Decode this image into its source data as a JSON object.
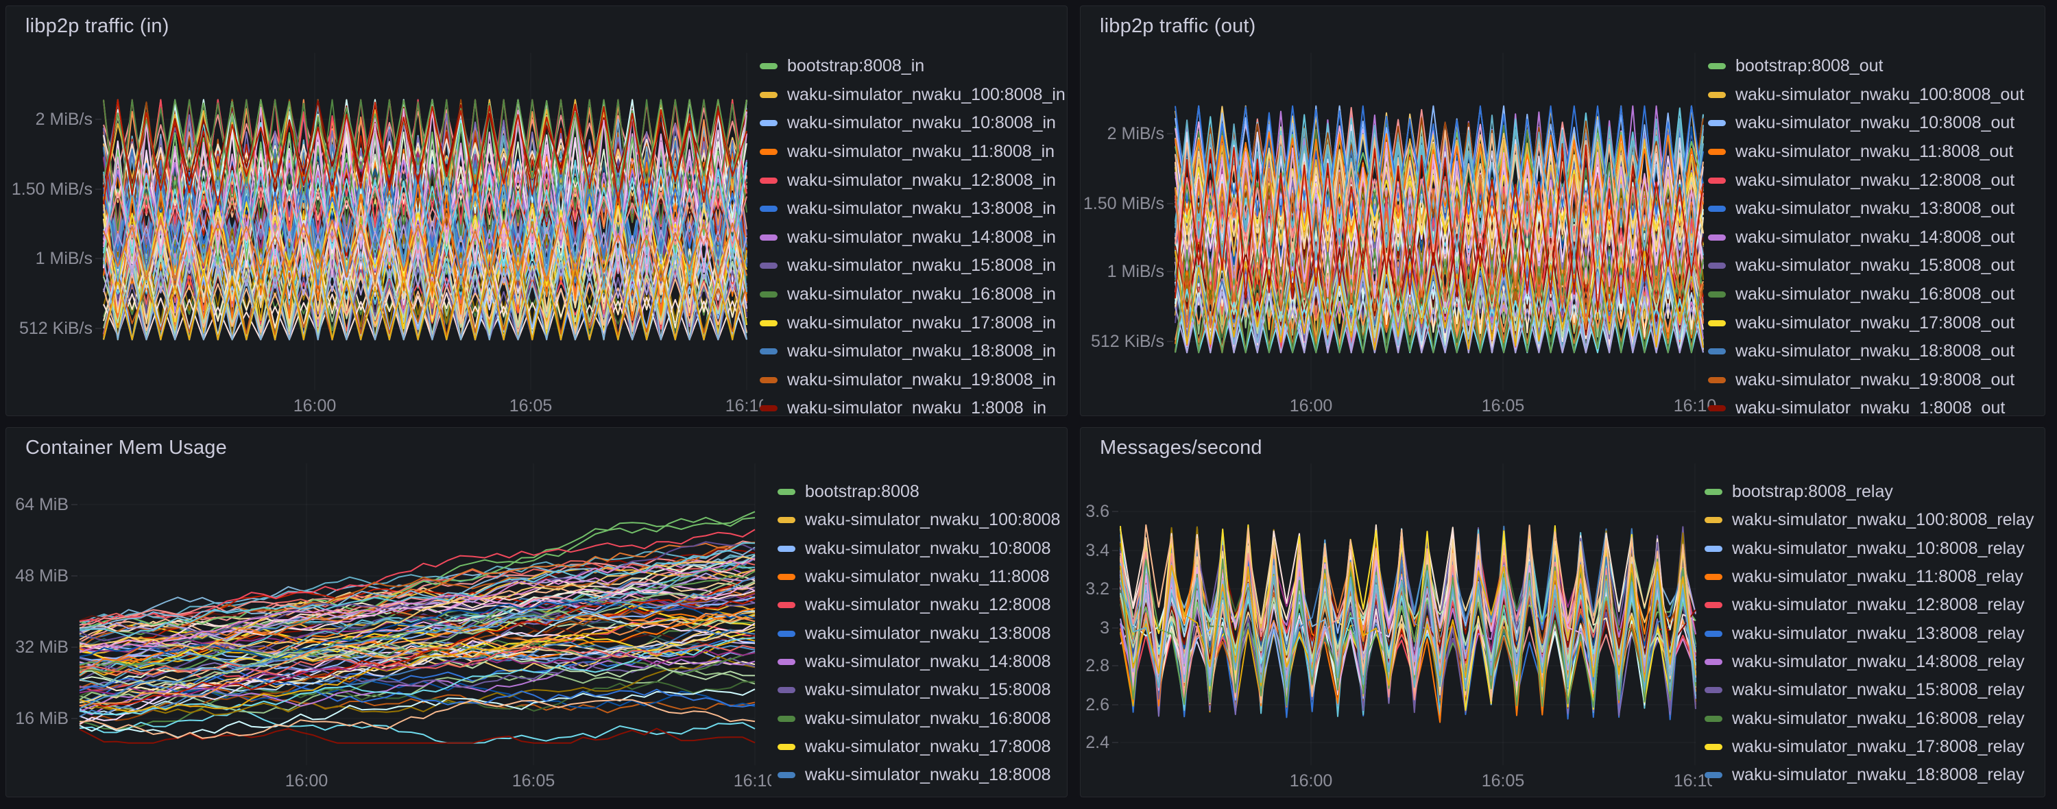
{
  "page": {
    "background": "#111217",
    "panel_background": "#181B1F",
    "title_color": "#CCCCDC",
    "axis_color": "rgba(204,204,220,0.65)",
    "grid_color": "rgba(204,204,220,0.06)"
  },
  "palette": [
    "#73BF69",
    "#EAB839",
    "#8AB8FF",
    "#FF780A",
    "#F2495C",
    "#3274D9",
    "#B877D9",
    "#705DA0",
    "#508642",
    "#FADE2A",
    "#447EBC",
    "#C15C17",
    "#890F02",
    "#70DBED",
    "#F4D598",
    "#B7DBAB",
    "#F9BA8F",
    "#F29191",
    "#82B5D8",
    "#E5A8E2",
    "#AEA2E0",
    "#629E51",
    "#E5AC0E",
    "#64B0C8",
    "#E0752D",
    "#BF1B00",
    "#0A50A1",
    "#962D82",
    "#614D93",
    "#9AC48A",
    "#F2C96D",
    "#65C5DB",
    "#F9934E",
    "#EA6460",
    "#5195CE",
    "#D683CE",
    "#806EB7",
    "#3F6833",
    "#967302",
    "#2F575E",
    "#99440A",
    "#58140C",
    "#E0F9D7",
    "#FCEACA",
    "#CFFAFF",
    "#F9E2D2",
    "#FCE2DE",
    "#BADFF4",
    "#F9D9F9",
    "#DEDAF7"
  ],
  "panels": [
    {
      "title": "libp2p traffic (in)",
      "y_tick_labels": [
        "2 MiB/s",
        "1.50 MiB/s",
        "1 MiB/s",
        "512 KiB/s"
      ],
      "x_tick_labels": [
        "16:00",
        "16:05",
        "16:10"
      ],
      "legend": [
        "bootstrap:8008_in",
        "waku-simulator_nwaku_100:8008_in",
        "waku-simulator_nwaku_10:8008_in",
        "waku-simulator_nwaku_11:8008_in",
        "waku-simulator_nwaku_12:8008_in",
        "waku-simulator_nwaku_13:8008_in",
        "waku-simulator_nwaku_14:8008_in",
        "waku-simulator_nwaku_15:8008_in",
        "waku-simulator_nwaku_16:8008_in",
        "waku-simulator_nwaku_17:8008_in",
        "waku-simulator_nwaku_18:8008_in",
        "waku-simulator_nwaku_19:8008_in",
        "waku-simulator_nwaku_1:8008_in"
      ]
    },
    {
      "title": "libp2p traffic (out)",
      "y_tick_labels": [
        "2 MiB/s",
        "1.50 MiB/s",
        "1 MiB/s",
        "512 KiB/s"
      ],
      "x_tick_labels": [
        "16:00",
        "16:05",
        "16:10"
      ],
      "legend": [
        "bootstrap:8008_out",
        "waku-simulator_nwaku_100:8008_out",
        "waku-simulator_nwaku_10:8008_out",
        "waku-simulator_nwaku_11:8008_out",
        "waku-simulator_nwaku_12:8008_out",
        "waku-simulator_nwaku_13:8008_out",
        "waku-simulator_nwaku_14:8008_out",
        "waku-simulator_nwaku_15:8008_out",
        "waku-simulator_nwaku_16:8008_out",
        "waku-simulator_nwaku_17:8008_out",
        "waku-simulator_nwaku_18:8008_out",
        "waku-simulator_nwaku_19:8008_out",
        "waku-simulator_nwaku_1:8008_out"
      ]
    },
    {
      "title": "Container Mem Usage",
      "y_tick_labels": [
        "64 MiB",
        "48 MiB",
        "32 MiB",
        "16 MiB"
      ],
      "x_tick_labels": [
        "16:00",
        "16:05",
        "16:10"
      ],
      "legend": [
        "bootstrap:8008",
        "waku-simulator_nwaku_100:8008",
        "waku-simulator_nwaku_10:8008",
        "waku-simulator_nwaku_11:8008",
        "waku-simulator_nwaku_12:8008",
        "waku-simulator_nwaku_13:8008",
        "waku-simulator_nwaku_14:8008",
        "waku-simulator_nwaku_15:8008",
        "waku-simulator_nwaku_16:8008",
        "waku-simulator_nwaku_17:8008",
        "waku-simulator_nwaku_18:8008"
      ]
    },
    {
      "title": "Messages/second",
      "y_tick_labels": [
        "3.6",
        "3.4",
        "3.2",
        "3",
        "2.8",
        "2.6",
        "2.4"
      ],
      "x_tick_labels": [
        "16:00",
        "16:05",
        "16:10"
      ],
      "legend": [
        "bootstrap:8008_relay",
        "waku-simulator_nwaku_100:8008_relay",
        "waku-simulator_nwaku_10:8008_relay",
        "waku-simulator_nwaku_11:8008_relay",
        "waku-simulator_nwaku_12:8008_relay",
        "waku-simulator_nwaku_13:8008_relay",
        "waku-simulator_nwaku_14:8008_relay",
        "waku-simulator_nwaku_15:8008_relay",
        "waku-simulator_nwaku_16:8008_relay",
        "waku-simulator_nwaku_17:8008_relay",
        "waku-simulator_nwaku_18:8008_relay"
      ]
    }
  ],
  "chart_data": [
    {
      "type": "line",
      "title": "libp2p traffic (in)",
      "xlabel": "",
      "ylabel": "",
      "x_ticks": [
        "16:00",
        "16:05",
        "16:10"
      ],
      "y_ticks_mib_per_s": [
        2,
        1.5,
        1,
        0.5
      ],
      "y_tick_labels": [
        "2 MiB/s",
        "1.50 MiB/s",
        "1 MiB/s",
        "512 KiB/s"
      ],
      "approx_value_band_mib_per_s": [
        0.4,
        2.15
      ],
      "pattern": "many overlapping sawtooth series oscillating every sample; dense band 0.4-2.1 MiB/s",
      "legend_position": "right",
      "grid": true,
      "series_visible_in_legend": [
        "bootstrap:8008_in",
        "waku-simulator_nwaku_100:8008_in",
        "waku-simulator_nwaku_10:8008_in",
        "waku-simulator_nwaku_11:8008_in",
        "waku-simulator_nwaku_12:8008_in",
        "waku-simulator_nwaku_13:8008_in",
        "waku-simulator_nwaku_14:8008_in",
        "waku-simulator_nwaku_15:8008_in",
        "waku-simulator_nwaku_16:8008_in",
        "waku-simulator_nwaku_17:8008_in",
        "waku-simulator_nwaku_18:8008_in",
        "waku-simulator_nwaku_19:8008_in",
        "waku-simulator_nwaku_1:8008_in"
      ]
    },
    {
      "type": "line",
      "title": "libp2p traffic (out)",
      "xlabel": "",
      "ylabel": "",
      "x_ticks": [
        "16:00",
        "16:05",
        "16:10"
      ],
      "y_ticks_mib_per_s": [
        2,
        1.5,
        1,
        0.5
      ],
      "y_tick_labels": [
        "2 MiB/s",
        "1.50 MiB/s",
        "1 MiB/s",
        "512 KiB/s"
      ],
      "approx_value_band_mib_per_s": [
        0.4,
        2.2
      ],
      "pattern": "many overlapping sawtooth series oscillating every sample; dense band 0.4-2.2 MiB/s",
      "legend_position": "right",
      "grid": true,
      "series_visible_in_legend": [
        "bootstrap:8008_out",
        "waku-simulator_nwaku_100:8008_out",
        "waku-simulator_nwaku_10:8008_out",
        "waku-simulator_nwaku_11:8008_out",
        "waku-simulator_nwaku_12:8008_out",
        "waku-simulator_nwaku_13:8008_out",
        "waku-simulator_nwaku_14:8008_out",
        "waku-simulator_nwaku_15:8008_out",
        "waku-simulator_nwaku_16:8008_out",
        "waku-simulator_nwaku_17:8008_out",
        "waku-simulator_nwaku_18:8008_out",
        "waku-simulator_nwaku_19:8008_out",
        "waku-simulator_nwaku_1:8008_out"
      ]
    },
    {
      "type": "line",
      "title": "Container Mem Usage",
      "xlabel": "",
      "ylabel": "",
      "x_ticks": [
        "16:00",
        "16:05",
        "16:10"
      ],
      "y_ticks_mib": [
        64,
        48,
        32,
        16
      ],
      "y_tick_labels": [
        "64 MiB",
        "48 MiB",
        "32 MiB",
        "16 MiB"
      ],
      "approx_value_band_mib": [
        11,
        64
      ],
      "pattern": "random-walk memory usage per container, band starts ~13-38 MiB and drifts upward to ~25-60 MiB",
      "legend_position": "right",
      "grid": true,
      "series_visible_in_legend": [
        "bootstrap:8008",
        "waku-simulator_nwaku_100:8008",
        "waku-simulator_nwaku_10:8008",
        "waku-simulator_nwaku_11:8008",
        "waku-simulator_nwaku_12:8008",
        "waku-simulator_nwaku_13:8008",
        "waku-simulator_nwaku_14:8008",
        "waku-simulator_nwaku_15:8008",
        "waku-simulator_nwaku_16:8008",
        "waku-simulator_nwaku_17:8008",
        "waku-simulator_nwaku_18:8008"
      ]
    },
    {
      "type": "line",
      "title": "Messages/second",
      "xlabel": "",
      "ylabel": "",
      "x_ticks": [
        "16:00",
        "16:05",
        "16:10"
      ],
      "y_ticks": [
        3.6,
        3.4,
        3.2,
        3.0,
        2.8,
        2.6,
        2.4
      ],
      "y_tick_labels": [
        "3.6",
        "3.4",
        "3.2",
        "3",
        "2.8",
        "2.6",
        "2.4"
      ],
      "approx_value_band": [
        2.43,
        3.55
      ],
      "pattern": "tightly synchronized zigzag of relay message rates oscillating between ~2.45 and ~3.5 around mean ~3.0",
      "legend_position": "right",
      "grid": true,
      "series_visible_in_legend": [
        "bootstrap:8008_relay",
        "waku-simulator_nwaku_100:8008_relay",
        "waku-simulator_nwaku_10:8008_relay",
        "waku-simulator_nwaku_11:8008_relay",
        "waku-simulator_nwaku_12:8008_relay",
        "waku-simulator_nwaku_13:8008_relay",
        "waku-simulator_nwaku_14:8008_relay",
        "waku-simulator_nwaku_15:8008_relay",
        "waku-simulator_nwaku_16:8008_relay",
        "waku-simulator_nwaku_17:8008_relay",
        "waku-simulator_nwaku_18:8008_relay"
      ]
    }
  ]
}
